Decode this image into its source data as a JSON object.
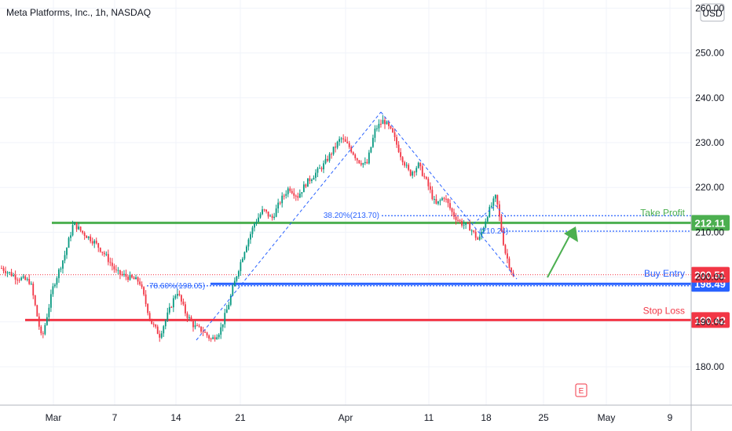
{
  "chart_data": {
    "type": "candlestick",
    "title": "Meta Platforms, Inc., 1h, NASDAQ",
    "currency": "USD",
    "y_ticks": [
      "180.00",
      "190.00",
      "200.00",
      "210.00",
      "220.00",
      "230.00",
      "240.00",
      "250.00",
      "260.00"
    ],
    "y_range": [
      172,
      262
    ],
    "x_ticks": [
      "Mar",
      "7",
      "14",
      "21",
      "Apr",
      "11",
      "18",
      "25",
      "May",
      "9"
    ],
    "price_path": [
      [
        0,
        202
      ],
      [
        5,
        200
      ],
      [
        10,
        199
      ],
      [
        14,
        186
      ],
      [
        18,
        198
      ],
      [
        22,
        205
      ],
      [
        25,
        212
      ],
      [
        28,
        210
      ],
      [
        32,
        208
      ],
      [
        36,
        205
      ],
      [
        40,
        201
      ],
      [
        44,
        200
      ],
      [
        48,
        199
      ],
      [
        52,
        190
      ],
      [
        55,
        187
      ],
      [
        58,
        192
      ],
      [
        61,
        197
      ],
      [
        64,
        192
      ],
      [
        67,
        189
      ],
      [
        70,
        188
      ],
      [
        73,
        186
      ],
      [
        76,
        188
      ],
      [
        79,
        194
      ],
      [
        82,
        201
      ],
      [
        85,
        207
      ],
      [
        88,
        212
      ],
      [
        91,
        215
      ],
      [
        94,
        213
      ],
      [
        97,
        217
      ],
      [
        100,
        220
      ],
      [
        103,
        218
      ],
      [
        106,
        221
      ],
      [
        109,
        223
      ],
      [
        112,
        225
      ],
      [
        115,
        228
      ],
      [
        118,
        231
      ],
      [
        121,
        229
      ],
      [
        124,
        226
      ],
      [
        127,
        225
      ],
      [
        130,
        233
      ],
      [
        133,
        235
      ],
      [
        136,
        232
      ],
      [
        139,
        227
      ],
      [
        142,
        223
      ],
      [
        145,
        225
      ],
      [
        148,
        221
      ],
      [
        151,
        216
      ],
      [
        154,
        218
      ],
      [
        157,
        214
      ],
      [
        160,
        212
      ],
      [
        163,
        211
      ],
      [
        166,
        208
      ],
      [
        169,
        214
      ],
      [
        172,
        218
      ],
      [
        175,
        206
      ],
      [
        178,
        200
      ]
    ],
    "levels": [
      {
        "name": "Take Profit",
        "value": 212.11,
        "label": "212.11",
        "color": "#4caf50"
      },
      {
        "name": "Buy Entry",
        "value": 198.49,
        "label": "198.49",
        "color": "#2962ff"
      },
      {
        "name": "Stop Loss",
        "value": 190.42,
        "label": "190.42",
        "color": "#f23645"
      }
    ],
    "current_price": {
      "value": 200.51,
      "label": "200.51",
      "color": "#f23645"
    },
    "fib_levels": [
      {
        "label": "38.20%(213.70)",
        "value": 213.7
      },
      {
        "label": "78.60%(198.05)",
        "value": 198.05
      },
      {
        "label": "(210.24)",
        "value": 210.24
      }
    ],
    "event_marker": "E",
    "colors": {
      "up": "#089981",
      "down": "#f23645",
      "grid": "#f0f3fa",
      "axis_text": "#131722"
    }
  }
}
